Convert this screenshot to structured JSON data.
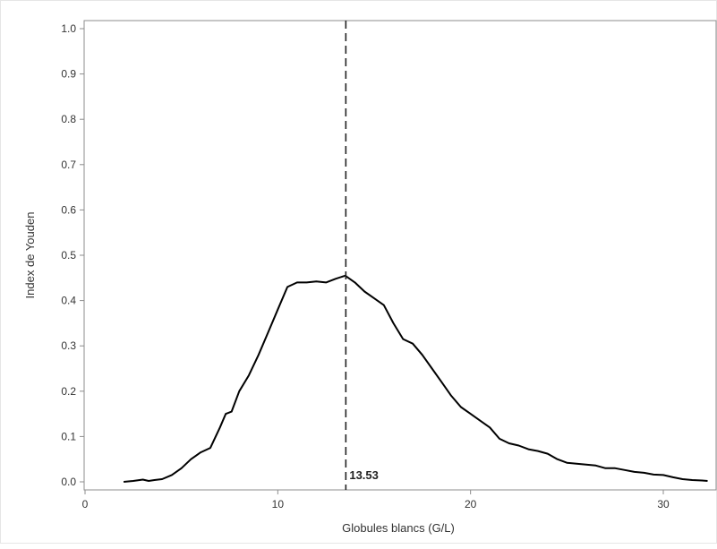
{
  "chart_data": {
    "type": "line",
    "title": "",
    "xlabel": "Globules blancs (G/L)",
    "ylabel": "Index de Youden",
    "xlim": [
      0,
      32.5
    ],
    "ylim": [
      0,
      1.0
    ],
    "x_ticks": [
      0,
      10,
      20,
      30
    ],
    "y_ticks": [
      0.0,
      0.1,
      0.2,
      0.3,
      0.4,
      0.5,
      0.6,
      0.7,
      0.8,
      0.9,
      1.0
    ],
    "x_tick_labels": [
      "0",
      "10",
      "20",
      "30"
    ],
    "y_tick_labels": [
      "0.0",
      "0.1",
      "0.2",
      "0.3",
      "0.4",
      "0.5",
      "0.6",
      "0.7",
      "0.8",
      "0.9",
      "1.0"
    ],
    "grid": false,
    "series": [
      {
        "color": "#000000",
        "x": [
          2.0,
          2.5,
          3.0,
          3.3,
          3.6,
          4.0,
          4.5,
          5.0,
          5.5,
          6.0,
          6.5,
          7.0,
          7.3,
          7.6,
          8.0,
          8.5,
          9.0,
          9.5,
          10.0,
          10.5,
          11.0,
          11.5,
          12.0,
          12.5,
          13.0,
          13.5,
          14.0,
          14.5,
          15.0,
          15.5,
          16.0,
          16.5,
          17.0,
          17.5,
          18.0,
          18.5,
          19.0,
          19.5,
          20.0,
          20.5,
          21.0,
          21.5,
          22.0,
          22.5,
          23.0,
          23.5,
          24.0,
          24.5,
          25.0,
          25.5,
          26.0,
          26.5,
          27.0,
          27.5,
          28.0,
          28.5,
          29.0,
          29.5,
          30.0,
          30.5,
          31.0,
          31.5,
          32.0,
          32.3
        ],
        "y": [
          0.0,
          0.002,
          0.005,
          0.002,
          0.004,
          0.006,
          0.015,
          0.03,
          0.05,
          0.065,
          0.075,
          0.12,
          0.15,
          0.155,
          0.2,
          0.235,
          0.28,
          0.33,
          0.38,
          0.43,
          0.44,
          0.44,
          0.442,
          0.44,
          0.448,
          0.455,
          0.44,
          0.42,
          0.405,
          0.39,
          0.35,
          0.315,
          0.305,
          0.28,
          0.25,
          0.22,
          0.19,
          0.165,
          0.15,
          0.135,
          0.12,
          0.095,
          0.085,
          0.08,
          0.072,
          0.068,
          0.062,
          0.05,
          0.042,
          0.04,
          0.038,
          0.036,
          0.03,
          0.03,
          0.026,
          0.022,
          0.02,
          0.016,
          0.015,
          0.01,
          0.006,
          0.004,
          0.003,
          0.002
        ]
      }
    ],
    "reference_line": {
      "x": 13.53,
      "style": "dashed",
      "label": "13.53"
    }
  }
}
